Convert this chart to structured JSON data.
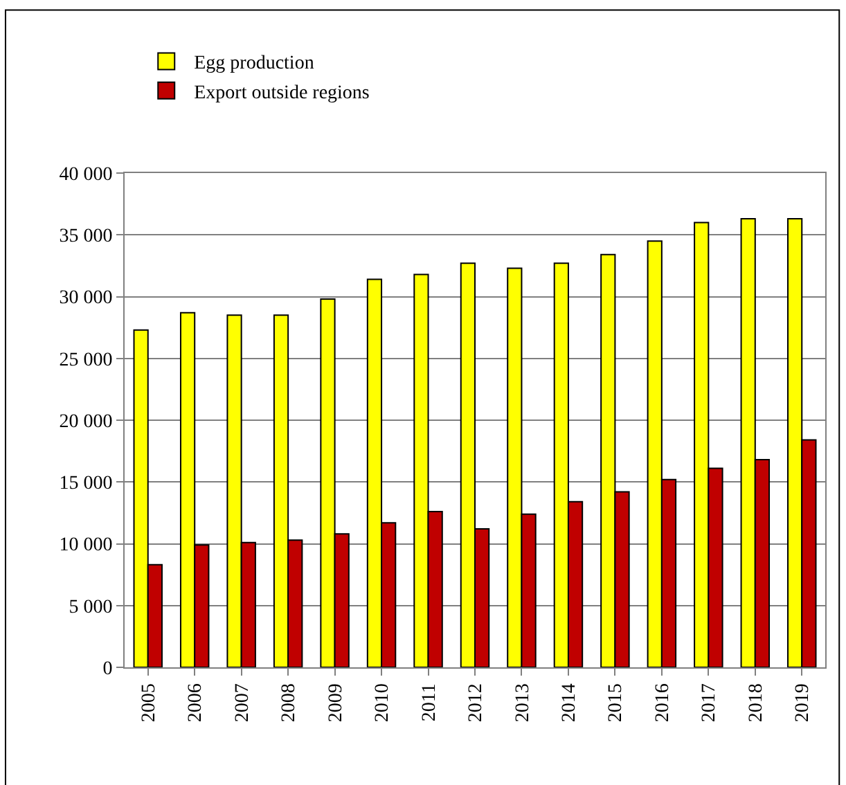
{
  "chart_data": {
    "type": "bar",
    "categories": [
      "2005",
      "2006",
      "2007",
      "2008",
      "2009",
      "2010",
      "2011",
      "2012",
      "2013",
      "2014",
      "2015",
      "2016",
      "2017",
      "2018",
      "2019"
    ],
    "series": [
      {
        "name": "Egg production",
        "color": "#ffff00",
        "values": [
          27300,
          28700,
          28500,
          28500,
          29800,
          31400,
          31800,
          32700,
          32300,
          32700,
          33400,
          34500,
          36000,
          36300,
          36300
        ]
      },
      {
        "name": "Export outside regions",
        "color": "#c00000",
        "values": [
          8300,
          9900,
          10100,
          10300,
          10800,
          11700,
          12600,
          11200,
          12400,
          13400,
          14200,
          15200,
          16100,
          16800,
          18400
        ]
      }
    ],
    "ylim": [
      0,
      40000
    ],
    "yticks": [
      {
        "value": 0,
        "label": "0"
      },
      {
        "value": 5000,
        "label": "5 000"
      },
      {
        "value": 10000,
        "label": "10 000"
      },
      {
        "value": 15000,
        "label": "15 000"
      },
      {
        "value": 20000,
        "label": "20 000"
      },
      {
        "value": 25000,
        "label": "25 000"
      },
      {
        "value": 30000,
        "label": "30 000"
      },
      {
        "value": 35000,
        "label": "35 000"
      },
      {
        "value": 40000,
        "label": "40 000"
      }
    ],
    "grid": "y",
    "legend": "top left"
  }
}
